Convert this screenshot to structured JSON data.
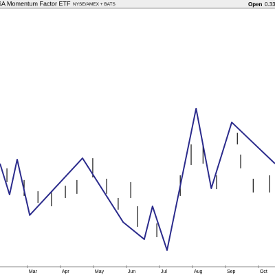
{
  "chart_data": {
    "type": "line",
    "title": "SA Momentum Factor ETF",
    "subtitle": "NYSE/AMEX + BATS",
    "open_label": "Open",
    "open_value": "0.33",
    "xlim": [
      2.17,
      10.5
    ],
    "ylim": [
      0,
      100
    ],
    "xticks": [
      {
        "value": 3,
        "label": "Mar"
      },
      {
        "value": 4,
        "label": "Apr"
      },
      {
        "value": 5,
        "label": "May"
      },
      {
        "value": 6,
        "label": "Jun"
      },
      {
        "value": 7,
        "label": "Jul"
      },
      {
        "value": 8,
        "label": "Aug"
      },
      {
        "value": 9,
        "label": "Sep"
      },
      {
        "value": 10,
        "label": "Oct"
      }
    ],
    "series": [
      {
        "color": "#2b2b8c",
        "x": [
          2.17,
          2.46,
          2.69,
          3.07,
          4.67,
          5.9,
          6.54,
          6.79,
          7.23,
          8.11,
          8.57,
          9.19,
          10.5
        ],
        "values": [
          40.2,
          28.3,
          41.8,
          20.4,
          42.3,
          17.7,
          11.1,
          23.8,
          6.9,
          61.4,
          30.7,
          56.1,
          40.2
        ]
      }
    ],
    "bars": {
      "color": "#111111",
      "x": [
        2.38,
        2.9,
        3.32,
        3.73,
        4.15,
        4.5,
        4.98,
        5.4,
        5.75,
        6.13,
        6.34,
        6.92,
        7.63,
        7.96,
        8.32,
        8.73,
        9.36,
        9.46,
        9.84,
        10.34
      ],
      "low": [
        33.1,
        27.8,
        25.1,
        23.8,
        27.0,
        28.6,
        34.9,
        28.6,
        22.5,
        27.0,
        15.9,
        11.9,
        27.8,
        39.7,
        40.2,
        30.4,
        47.6,
        38.4,
        29.1,
        29.1
      ],
      "high": [
        38.4,
        33.9,
        29.6,
        29.1,
        31.7,
        33.9,
        42.3,
        34.4,
        27.0,
        33.1,
        23.8,
        17.2,
        35.7,
        47.6,
        47.1,
        35.7,
        52.1,
        43.7,
        34.4,
        35.7
      ]
    }
  }
}
